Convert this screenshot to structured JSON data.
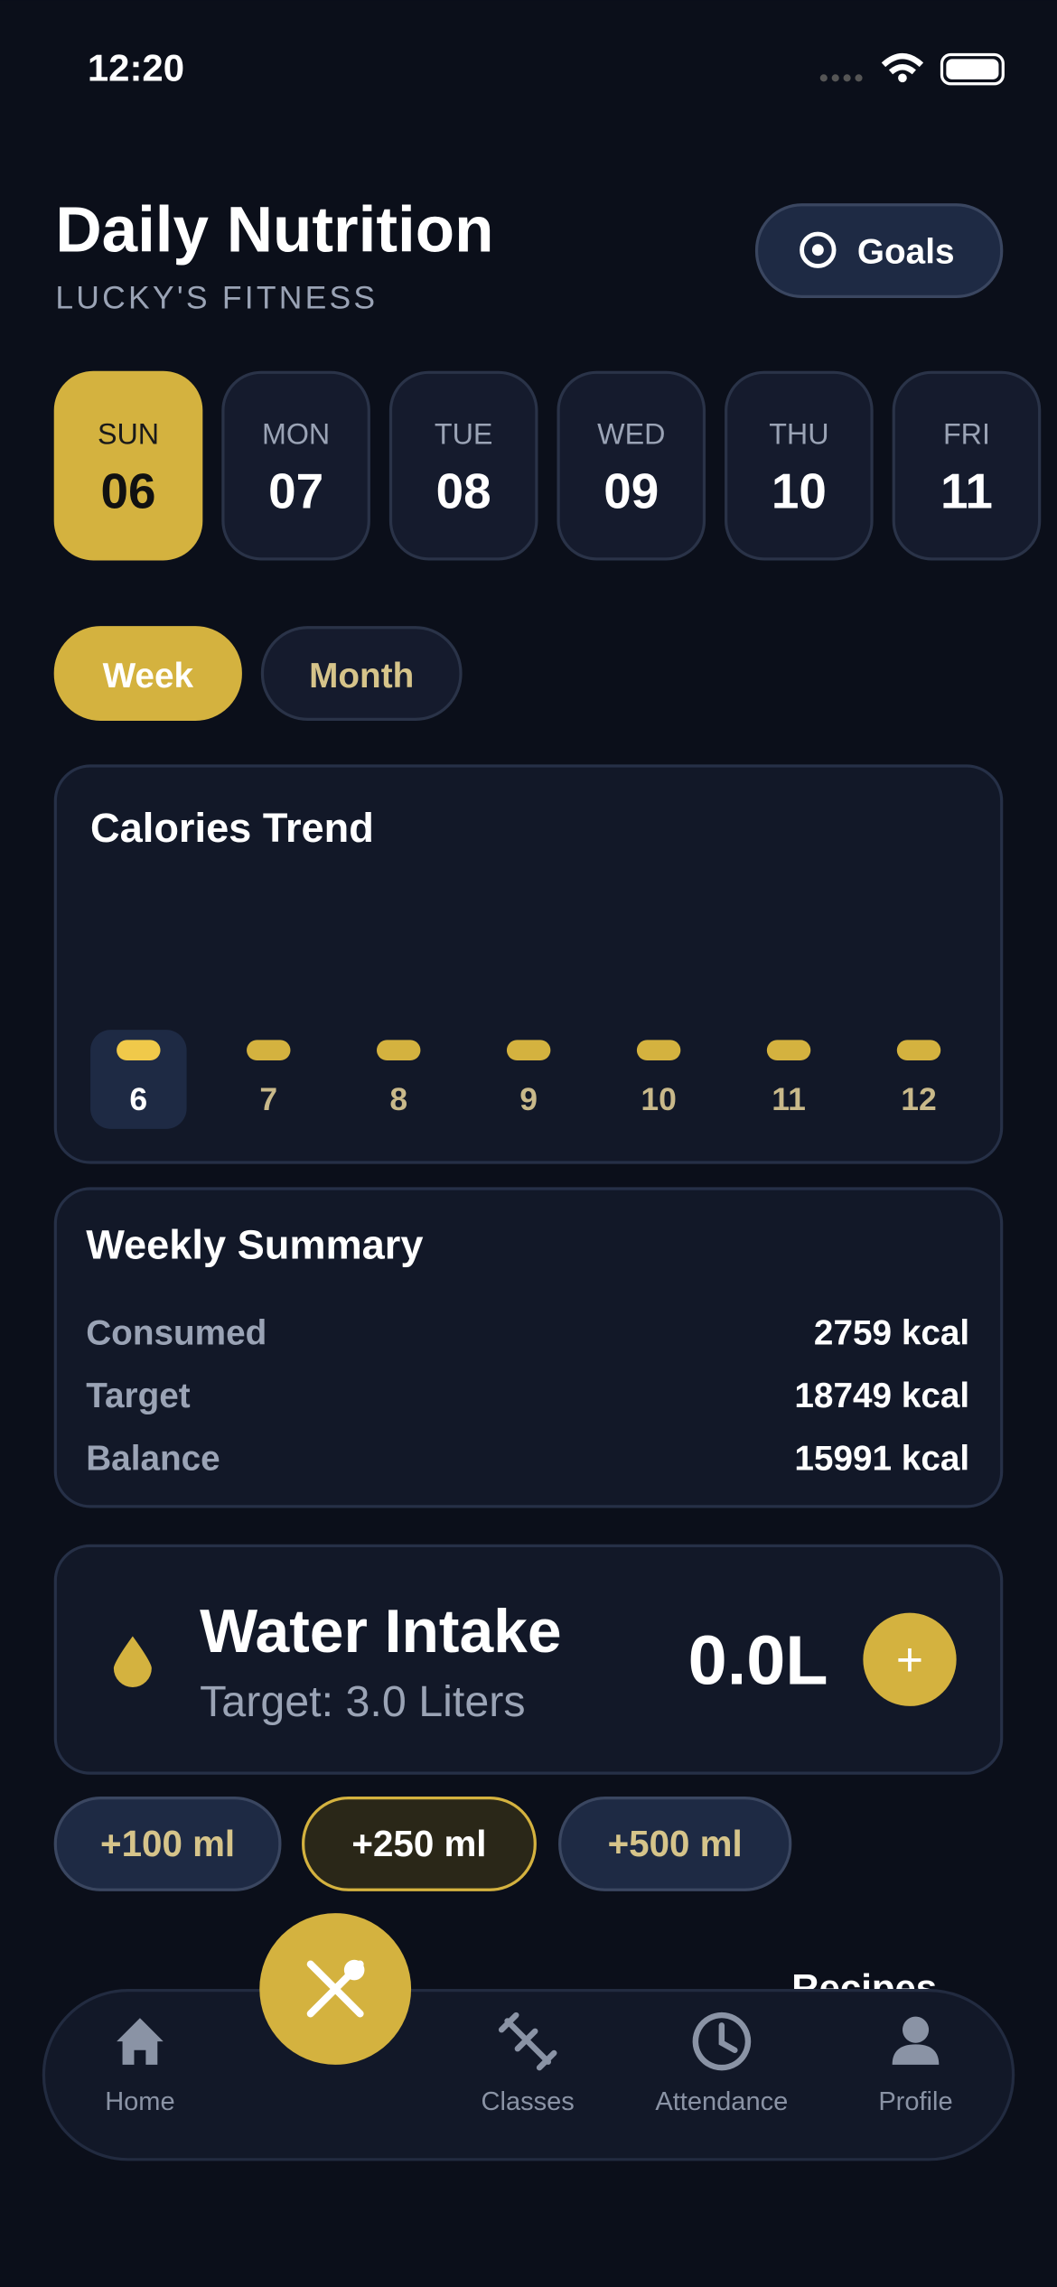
{
  "status_bar": {
    "time": "12:20"
  },
  "header": {
    "title": "Daily Nutrition",
    "subtitle": "LUCKY'S FITNESS",
    "goals_button": "Goals"
  },
  "days": [
    {
      "day": "SUN",
      "date": "06"
    },
    {
      "day": "MON",
      "date": "07"
    },
    {
      "day": "TUE",
      "date": "08"
    },
    {
      "day": "WED",
      "date": "09"
    },
    {
      "day": "THU",
      "date": "10"
    },
    {
      "day": "FRI",
      "date": "11"
    }
  ],
  "tabs": [
    "Week",
    "Month"
  ],
  "calories_trend": {
    "title": "Calories Trend",
    "labels": [
      "6",
      "7",
      "8",
      "9",
      "10",
      "11",
      "12"
    ]
  },
  "weekly_summary": {
    "title": "Weekly Summary",
    "rows": [
      {
        "label": "Consumed",
        "value": "2759 kcal"
      },
      {
        "label": "Target",
        "value": "18749 kcal"
      },
      {
        "label": "Balance",
        "value": "15991 kcal"
      }
    ]
  },
  "water_intake": {
    "title": "Water Intake",
    "target": "Target: 3.0 Liters",
    "amount": "0.0L",
    "add_button": "+",
    "quick_add": [
      "+100 ml",
      "+250 ml",
      "+500 ml"
    ]
  },
  "recipes_link": "Recipes",
  "nav": [
    "Home",
    "Classes",
    "Attendance",
    "Profile"
  ]
}
